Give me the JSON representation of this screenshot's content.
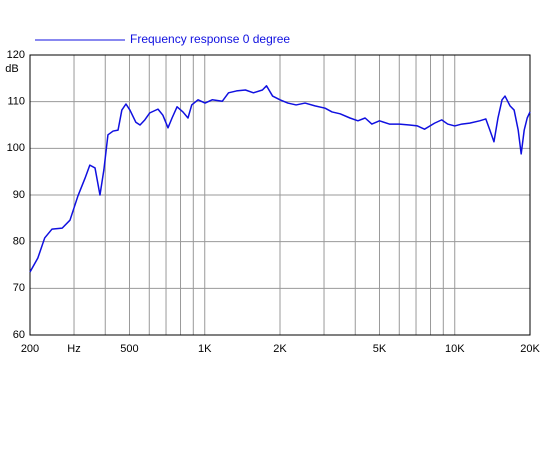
{
  "chart_data": {
    "type": "line",
    "log_x": true,
    "grid": true,
    "series": [
      {
        "name": "Frequency response 0 degree",
        "color": "#1010e0",
        "x": [
          200,
          215,
          229,
          245,
          269,
          289,
          311,
          332,
          347,
          364,
          381,
          395,
          410,
          430,
          450,
          466,
          484,
          502,
          530,
          551,
          576,
          603,
          650,
          680,
          713,
          740,
          775,
          818,
          857,
          887,
          940,
          1003,
          1071,
          1176,
          1245,
          1340,
          1455,
          1566,
          1701,
          1766,
          1868,
          2000,
          2150,
          2320,
          2520,
          2760,
          3030,
          3230,
          3480,
          3810,
          4100,
          4380,
          4660,
          5000,
          5480,
          6010,
          6590,
          7090,
          7570,
          8310,
          8870,
          9370,
          10000,
          10670,
          11480,
          12590,
          13310,
          13820,
          14350,
          14890,
          15460,
          15890,
          16640,
          17280,
          17940,
          18440,
          18960,
          19490,
          20000
        ],
        "values": [
          73.5,
          76.5,
          80.8,
          82.7,
          82.9,
          84.6,
          89.8,
          93.6,
          96.4,
          95.8,
          90,
          95.4,
          102.9,
          103.7,
          103.9,
          108.2,
          109.5,
          108.2,
          105.6,
          105,
          106.1,
          107.6,
          108.4,
          107.1,
          104.4,
          106.5,
          108.9,
          107.8,
          106.5,
          109.3,
          110.4,
          109.7,
          110.4,
          110.1,
          111.9,
          112.3,
          112.5,
          111.9,
          112.5,
          113.4,
          111.2,
          110.4,
          109.7,
          109.3,
          109.7,
          109.1,
          108.6,
          107.8,
          107.4,
          106.5,
          105.9,
          106.5,
          105.2,
          105.9,
          105.2,
          105.2,
          105,
          104.8,
          104.1,
          105.4,
          106.1,
          105.2,
          104.8,
          105.2,
          105.4,
          105.9,
          106.3,
          103.9,
          101.4,
          106.5,
          110.4,
          111.2,
          109.1,
          108.2,
          103.9,
          98.8,
          103.9,
          106.5,
          107.8
        ]
      }
    ],
    "xlim": [
      200,
      20000
    ],
    "xticks": [
      200,
      {
        "value": 300,
        "label": "Hz"
      },
      500,
      {
        "value": 1000,
        "label": "1K"
      },
      {
        "value": 2000,
        "label": "2K"
      },
      {
        "value": 5000,
        "label": "5K"
      },
      {
        "value": 10000,
        "label": "10K"
      },
      {
        "value": 20000,
        "label": "20K"
      }
    ],
    "xminor": [
      400,
      600,
      700,
      800,
      900,
      3000,
      4000,
      6000,
      7000,
      8000,
      9000
    ],
    "ylim": [
      60,
      120
    ],
    "yticks": [
      60,
      70,
      80,
      90,
      100,
      110,
      120
    ],
    "ylabel": "dB"
  }
}
